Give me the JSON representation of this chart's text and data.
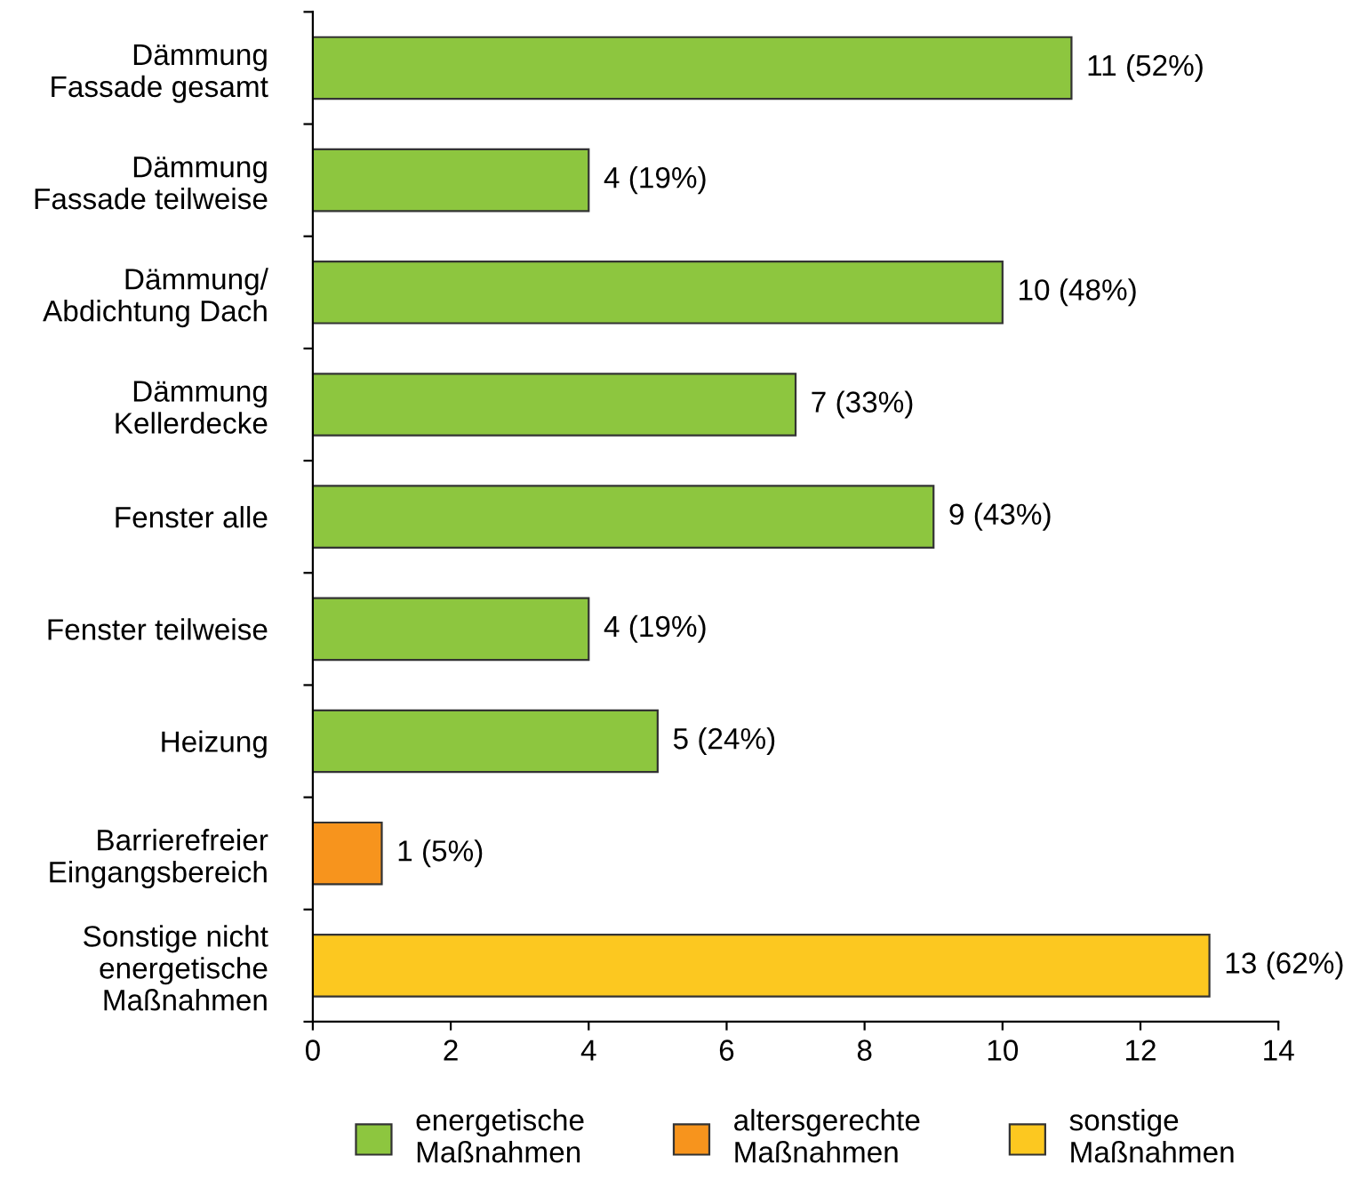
{
  "chart_data": {
    "type": "bar",
    "orientation": "horizontal",
    "categories": [
      "Dämmung\nFassade gesamt",
      "Dämmung\nFassade teilweise",
      "Dämmung/\nAbdichtung Dach",
      "Dämmung\nKellerdecke",
      "Fenster alle",
      "Fenster teilweise",
      "Heizung",
      "Barrierefreier\nEingangsbereich",
      "Sonstige nicht\nenergetische\nMaßnahmen"
    ],
    "series": [
      {
        "name": "energetische\nMaßnahmen",
        "color": "#8dc63f",
        "values": [
          11,
          4,
          10,
          7,
          9,
          4,
          5,
          null,
          null
        ],
        "value_labels": [
          "11 (52%)",
          "4 (19%)",
          "10 (48%)",
          "7 (33%)",
          "9 (43%)",
          "4 (19%)",
          "5 (24%)",
          null,
          null
        ]
      },
      {
        "name": "altersgerechte\nMaßnahmen",
        "color": "#f7941d",
        "values": [
          null,
          null,
          null,
          null,
          null,
          null,
          null,
          1,
          null
        ],
        "value_labels": [
          null,
          null,
          null,
          null,
          null,
          null,
          null,
          "1 (5%)",
          null
        ]
      },
      {
        "name": "sonstige\nMaßnahmen",
        "color": "#fcc820",
        "values": [
          null,
          null,
          null,
          null,
          null,
          null,
          null,
          null,
          13
        ],
        "value_labels": [
          null,
          null,
          null,
          null,
          null,
          null,
          null,
          null,
          "13 (62%)"
        ]
      }
    ],
    "xlim": [
      0,
      14
    ],
    "xticks": [
      0,
      2,
      4,
      6,
      8,
      10,
      12,
      14
    ],
    "grid": false,
    "legend": "bottom"
  }
}
